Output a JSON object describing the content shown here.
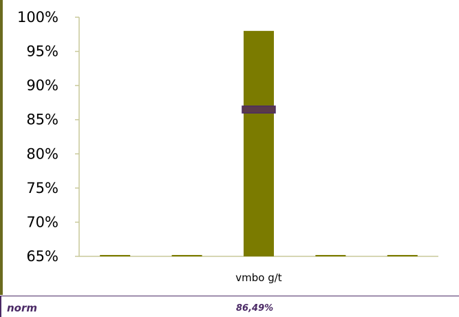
{
  "chart_data": {
    "type": "bar",
    "categories": [
      "",
      "",
      "vmbo g/t",
      "",
      ""
    ],
    "values": [
      65,
      65,
      98,
      65,
      65
    ],
    "norm_marker": {
      "category_index": 2,
      "value": 86.49
    },
    "ylim": [
      65,
      100
    ],
    "y_ticks": [
      65,
      70,
      75,
      80,
      85,
      90,
      95,
      100
    ],
    "y_tick_labels": [
      "65%",
      "70%",
      "75%",
      "80%",
      "85%",
      "90%",
      "95%",
      "100%"
    ],
    "title": "",
    "xlabel": "",
    "ylabel": "",
    "grid": false,
    "colors": {
      "bar": "#7b7b00",
      "axis": "#c9c99a",
      "marker_fill": "#5a3a4a",
      "marker_border": "#4b2a66"
    }
  },
  "footer": {
    "label": "norm",
    "value": "86,49%"
  }
}
